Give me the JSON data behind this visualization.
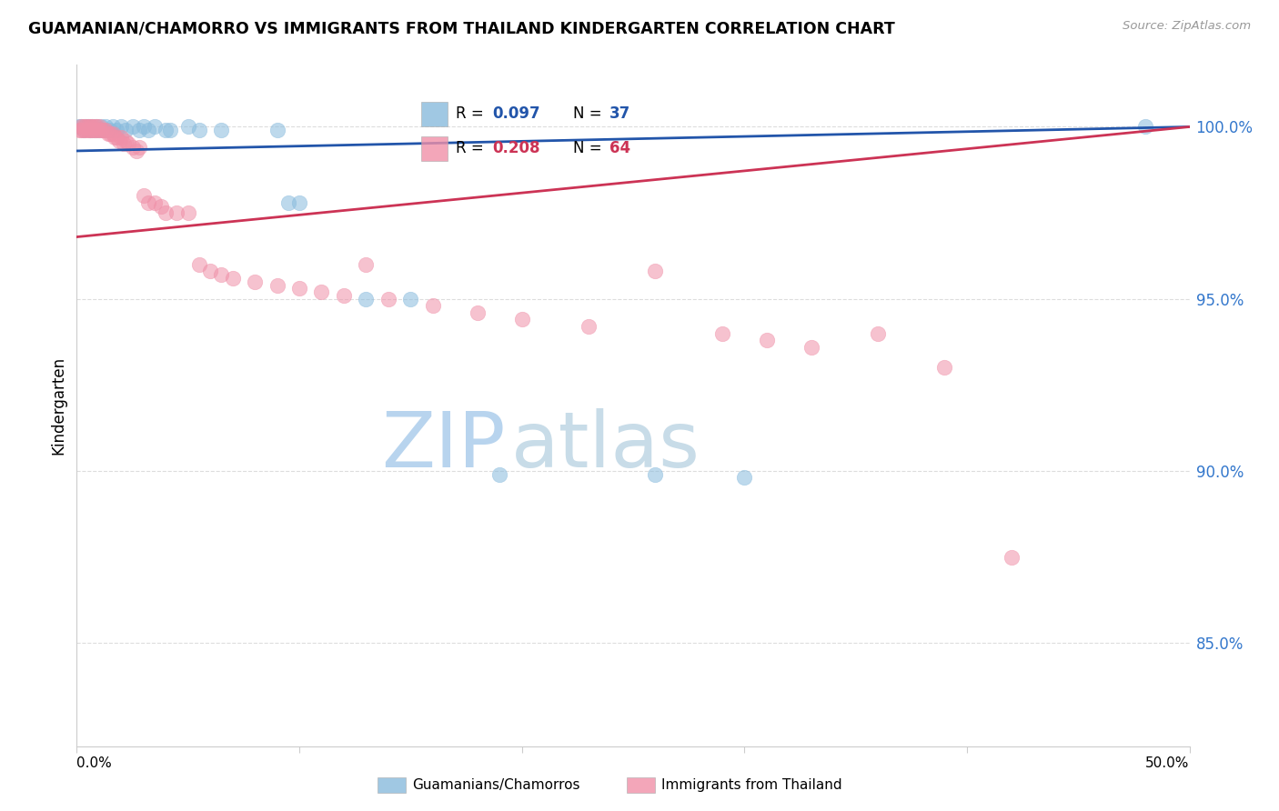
{
  "title": "GUAMANIAN/CHAMORRO VS IMMIGRANTS FROM THAILAND KINDERGARTEN CORRELATION CHART",
  "source": "Source: ZipAtlas.com",
  "ylabel": "Kindergarten",
  "ytick_labels": [
    "85.0%",
    "90.0%",
    "95.0%",
    "100.0%"
  ],
  "ytick_values": [
    0.85,
    0.9,
    0.95,
    1.0
  ],
  "xlim": [
    0.0,
    0.5
  ],
  "ylim": [
    0.82,
    1.018
  ],
  "legend_blue_r": "0.097",
  "legend_blue_n": "37",
  "legend_pink_r": "0.208",
  "legend_pink_n": "64",
  "blue_color": "#88bbdd",
  "pink_color": "#f090a8",
  "trendline_blue_color": "#2255aa",
  "trendline_pink_color": "#cc3355",
  "blue_scatter": [
    [
      0.001,
      1.0
    ],
    [
      0.002,
      1.0
    ],
    [
      0.003,
      0.999
    ],
    [
      0.004,
      1.0
    ],
    [
      0.005,
      1.0
    ],
    [
      0.006,
      0.999
    ],
    [
      0.007,
      1.0
    ],
    [
      0.008,
      0.999
    ],
    [
      0.009,
      1.0
    ],
    [
      0.01,
      0.999
    ],
    [
      0.011,
      1.0
    ],
    [
      0.012,
      0.999
    ],
    [
      0.013,
      1.0
    ],
    [
      0.015,
      0.999
    ],
    [
      0.016,
      1.0
    ],
    [
      0.018,
      0.999
    ],
    [
      0.02,
      1.0
    ],
    [
      0.022,
      0.999
    ],
    [
      0.025,
      1.0
    ],
    [
      0.028,
      0.999
    ],
    [
      0.03,
      1.0
    ],
    [
      0.032,
      0.999
    ],
    [
      0.035,
      1.0
    ],
    [
      0.04,
      0.999
    ],
    [
      0.042,
      0.999
    ],
    [
      0.05,
      1.0
    ],
    [
      0.055,
      0.999
    ],
    [
      0.065,
      0.999
    ],
    [
      0.09,
      0.999
    ],
    [
      0.095,
      0.978
    ],
    [
      0.1,
      0.978
    ],
    [
      0.13,
      0.95
    ],
    [
      0.15,
      0.95
    ],
    [
      0.19,
      0.899
    ],
    [
      0.26,
      0.899
    ],
    [
      0.3,
      0.898
    ],
    [
      0.48,
      1.0
    ]
  ],
  "pink_scatter": [
    [
      0.001,
      0.999
    ],
    [
      0.002,
      0.999
    ],
    [
      0.002,
      1.0
    ],
    [
      0.003,
      0.999
    ],
    [
      0.003,
      1.0
    ],
    [
      0.004,
      1.0
    ],
    [
      0.004,
      0.999
    ],
    [
      0.005,
      1.0
    ],
    [
      0.005,
      0.999
    ],
    [
      0.006,
      1.0
    ],
    [
      0.006,
      0.999
    ],
    [
      0.007,
      1.0
    ],
    [
      0.007,
      0.999
    ],
    [
      0.008,
      1.0
    ],
    [
      0.008,
      0.999
    ],
    [
      0.009,
      1.0
    ],
    [
      0.009,
      0.999
    ],
    [
      0.01,
      1.0
    ],
    [
      0.01,
      0.999
    ],
    [
      0.011,
      0.999
    ],
    [
      0.012,
      0.999
    ],
    [
      0.013,
      0.999
    ],
    [
      0.014,
      0.998
    ],
    [
      0.015,
      0.998
    ],
    [
      0.016,
      0.998
    ],
    [
      0.017,
      0.997
    ],
    [
      0.018,
      0.997
    ],
    [
      0.019,
      0.996
    ],
    [
      0.02,
      0.997
    ],
    [
      0.021,
      0.995
    ],
    [
      0.022,
      0.996
    ],
    [
      0.023,
      0.995
    ],
    [
      0.025,
      0.994
    ],
    [
      0.027,
      0.993
    ],
    [
      0.028,
      0.994
    ],
    [
      0.03,
      0.98
    ],
    [
      0.032,
      0.978
    ],
    [
      0.035,
      0.978
    ],
    [
      0.038,
      0.977
    ],
    [
      0.04,
      0.975
    ],
    [
      0.045,
      0.975
    ],
    [
      0.05,
      0.975
    ],
    [
      0.055,
      0.96
    ],
    [
      0.06,
      0.958
    ],
    [
      0.065,
      0.957
    ],
    [
      0.07,
      0.956
    ],
    [
      0.08,
      0.955
    ],
    [
      0.09,
      0.954
    ],
    [
      0.1,
      0.953
    ],
    [
      0.11,
      0.952
    ],
    [
      0.12,
      0.951
    ],
    [
      0.13,
      0.96
    ],
    [
      0.14,
      0.95
    ],
    [
      0.16,
      0.948
    ],
    [
      0.18,
      0.946
    ],
    [
      0.2,
      0.944
    ],
    [
      0.23,
      0.942
    ],
    [
      0.26,
      0.958
    ],
    [
      0.29,
      0.94
    ],
    [
      0.31,
      0.938
    ],
    [
      0.33,
      0.936
    ],
    [
      0.36,
      0.94
    ],
    [
      0.39,
      0.93
    ],
    [
      0.42,
      0.875
    ]
  ],
  "watermark_zip_color": "#b8d4ee",
  "watermark_atlas_color": "#c8dce8",
  "grid_color": "#dddddd",
  "spine_color": "#cccccc"
}
